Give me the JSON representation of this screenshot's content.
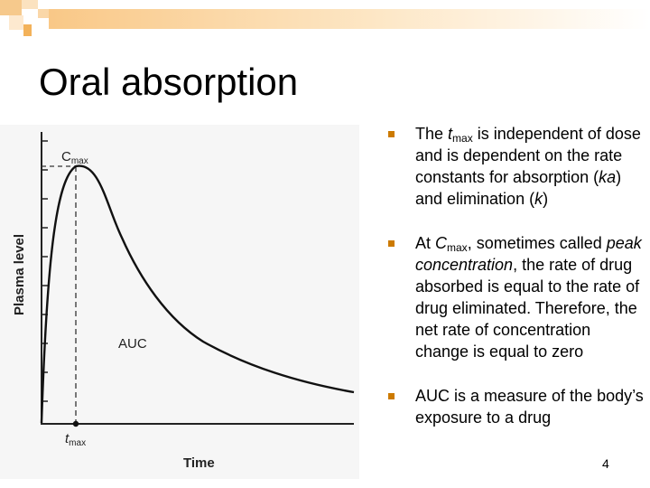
{
  "slide": {
    "title": "Oral absorption",
    "page_number": "4"
  },
  "diagram": {
    "y_axis_label": "Plasma level",
    "x_axis_label": "Time",
    "cmax_label": "C",
    "cmax_sub": "max",
    "tmax_label": "t",
    "tmax_sub": "max",
    "area_label": "AUC"
  },
  "bullets": [
    {
      "t1": "The ",
      "t2": "t",
      "t3": "max",
      "t4": " is independent of dose and is dependent on the rate constants for absorption (",
      "t5": "ka",
      "t6": ") and elimination (",
      "t7": "k",
      "t8": ")"
    },
    {
      "t1": "At ",
      "t2": "C",
      "t3": "max",
      "t4": ", sometimes called ",
      "t5": "peak concentration",
      "t6": ", the rate of drug absorbed is equal to the rate of drug eliminated. Therefore, the net rate of concentration change is equal to zero"
    },
    {
      "t1": "AUC is a measure of the body’s exposure to a drug"
    }
  ],
  "colors": {
    "accent": "#f5a623",
    "bullet": "#cc7a00"
  }
}
